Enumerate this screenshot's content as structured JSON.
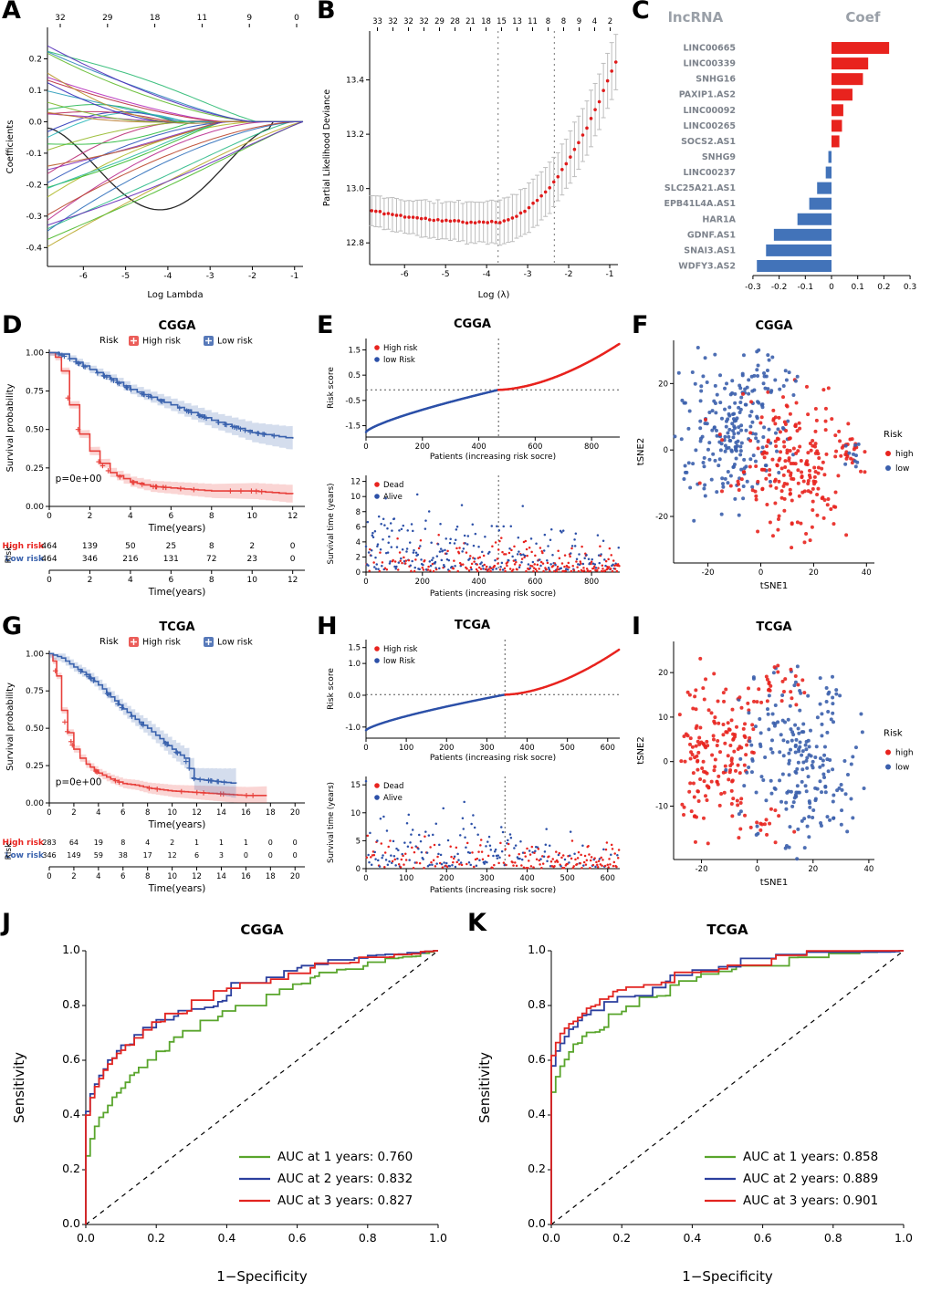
{
  "chart_data": [
    {
      "panel": "A",
      "type": "lasso_paths",
      "xlabel": "Log Lambda",
      "ylabel": "Coefficients",
      "top_ticks": [
        "32",
        "29",
        "18",
        "11",
        "9",
        "0"
      ],
      "x_tick_vals": [
        -6,
        -5,
        -4,
        -3,
        -2,
        -1
      ],
      "y_tick_vals": [
        -0.4,
        -0.3,
        -0.2,
        -0.1,
        0.0,
        0.1,
        0.2
      ],
      "y_tick_labels": [
        "-0.4",
        "-0.3",
        "-0.2",
        "-0.1",
        "0.0",
        "0.1",
        "0.2"
      ],
      "xlim": [
        -6.85,
        -0.8
      ],
      "ylim": [
        -0.46,
        0.3
      ],
      "n_lines": 33,
      "seed": 7
    },
    {
      "panel": "B",
      "type": "deviance",
      "xlabel": "Log (λ)",
      "ylabel": "Partial Likelihood Deviance",
      "top_ticks": [
        "33",
        "32",
        "32",
        "32",
        "29",
        "28",
        "21",
        "18",
        "15",
        "13",
        "11",
        "8",
        "8",
        "9",
        "4",
        "2"
      ],
      "x_tick_vals": [
        -6,
        -5,
        -4,
        -3,
        -2,
        -1
      ],
      "y_tick_vals": [
        12.8,
        13.0,
        13.2,
        13.4
      ],
      "y_tick_labels": [
        "12.8",
        "13.0",
        "13.2",
        "13.4"
      ],
      "xlim": [
        -6.85,
        -0.8
      ],
      "ylim": [
        12.72,
        13.58
      ],
      "vlines": [
        -3.72,
        -2.35
      ],
      "n_points": 60,
      "point_color": "#e01b1b",
      "seed": 11
    },
    {
      "panel": "C",
      "type": "hbar",
      "col_headers": [
        "lncRNA",
        "Coef"
      ],
      "categories": [
        "LINC00665",
        "LINC00339",
        "SNHG16",
        "PAXIP1.AS2",
        "LINC00092",
        "LINC00265",
        "SOCS2.AS1",
        "SNHG9",
        "LINC00237",
        "SLC25A21.AS1",
        "EPB41L4A.AS1",
        "HAR1A",
        "GDNF.AS1",
        "SNAI3.AS1",
        "WDFY3.AS2"
      ],
      "values": [
        0.22,
        0.14,
        0.12,
        0.08,
        0.045,
        0.04,
        0.03,
        -0.012,
        -0.022,
        -0.055,
        -0.085,
        -0.13,
        -0.22,
        -0.25,
        -0.285
      ],
      "x_tick_vals": [
        -0.3,
        -0.2,
        -0.1,
        0,
        0.1,
        0.2,
        0.3
      ],
      "x_tick_labels": [
        "-0.3",
        "-0.2",
        "-0.1",
        "0",
        "0.1",
        "0.2",
        "0.3"
      ],
      "xlim": [
        -0.345,
        0.345
      ],
      "pos_color": "#e8231e",
      "neg_color": "#4273b9",
      "label_color": "#7d838c",
      "header_color": "#9aa0a8"
    },
    {
      "panel": "D",
      "type": "km",
      "title": "CGGA",
      "legend_title": "Risk",
      "legend": [
        {
          "label": "High risk",
          "color": "#e8413c"
        },
        {
          "label": "Low risk",
          "color": "#3a62ad"
        }
      ],
      "xlabel": "Time(years)",
      "ylabel": "Survival probability",
      "pvalue": "p=0e+00",
      "p_xy": [
        0.3,
        0.16
      ],
      "x_tick_vals": [
        0,
        2,
        4,
        6,
        8,
        10,
        12
      ],
      "y_tick_vals": [
        0,
        0.25,
        0.5,
        0.75,
        1
      ],
      "y_tick_labels": [
        "0.00",
        "0.25",
        "0.50",
        "0.75",
        "1.00"
      ],
      "xmax": 12.6,
      "curves": [
        {
          "name": "High risk",
          "color": "#e8413c",
          "band": [
            0.02,
            0.04,
            1
          ],
          "censor_n": 22,
          "points": [
            [
              0,
              1
            ],
            [
              0.3,
              0.97
            ],
            [
              0.6,
              0.88
            ],
            [
              1,
              0.66
            ],
            [
              1.5,
              0.47
            ],
            [
              2,
              0.36
            ],
            [
              2.5,
              0.28
            ],
            [
              3,
              0.22
            ],
            [
              4,
              0.16
            ],
            [
              5,
              0.13
            ],
            [
              6,
              0.12
            ],
            [
              7,
              0.11
            ],
            [
              8,
              0.1
            ],
            [
              10,
              0.1
            ],
            [
              11,
              0.09
            ],
            [
              12,
              0.08
            ]
          ]
        },
        {
          "name": "Low risk",
          "color": "#3a62ad",
          "band": [
            0.02,
            0.06,
            1.5
          ],
          "censor_n": 55,
          "points": [
            [
              0,
              1
            ],
            [
              0.5,
              0.99
            ],
            [
              1,
              0.96
            ],
            [
              2,
              0.89
            ],
            [
              3,
              0.83
            ],
            [
              4,
              0.76
            ],
            [
              5,
              0.71
            ],
            [
              6,
              0.66
            ],
            [
              7,
              0.61
            ],
            [
              8,
              0.56
            ],
            [
              9,
              0.52
            ],
            [
              10,
              0.48
            ],
            [
              11,
              0.46
            ],
            [
              12,
              0.44
            ]
          ]
        }
      ],
      "risk_table": {
        "axis_label": "Risk",
        "rows": [
          {
            "label": "High risk",
            "color": "#e8231e",
            "counts": [
              "464",
              "139",
              "50",
              "25",
              "8",
              "2",
              "0"
            ]
          },
          {
            "label": "Low risk",
            "color": "#3a62ad",
            "counts": [
              "464",
              "346",
              "216",
              "131",
              "72",
              "23",
              "0"
            ]
          }
        ]
      },
      "seed": 21
    },
    {
      "panel": "E",
      "type": "risk_panels",
      "title": "CGGA",
      "n": 900,
      "cutoff_index": 470,
      "cutoff_value": -0.08,
      "score_min": -1.75,
      "score_max": 1.75,
      "high_color": "#e8231e",
      "low_color": "#2c50a8",
      "xlabel": "Patients (increasing risk socre)",
      "top": {
        "ylabel": "Risk score",
        "y_tick_vals": [
          -1.5,
          -0.5,
          0.5,
          1.5
        ],
        "y_tick_labels": [
          "-1.5",
          "-0.5",
          "0.5",
          "1.5"
        ],
        "ylim": [
          -1.95,
          1.95
        ],
        "x_tick_vals": [
          0,
          200,
          400,
          600,
          800
        ],
        "legend": [
          {
            "label": "High risk",
            "risk": "high"
          },
          {
            "label": "low Risk",
            "risk": "low"
          }
        ]
      },
      "bottom": {
        "ylabel": "Survival time (years)",
        "y_tick_vals": [
          0,
          2,
          4,
          6,
          8,
          10,
          12
        ],
        "y_tick_labels": [
          "0",
          "2",
          "4",
          "6",
          "8",
          "10",
          "12"
        ],
        "ylim": [
          0,
          12.8
        ],
        "x_tick_vals": [
          0,
          200,
          400,
          600,
          800
        ],
        "legend": [
          {
            "label": "Dead",
            "risk": "high"
          },
          {
            "label": "Alive",
            "risk": "low"
          }
        ]
      },
      "seed": 33
    },
    {
      "panel": "F",
      "type": "tsne",
      "title": "CGGA",
      "xlabel": "tSNE1",
      "ylabel": "tSNE2",
      "x_tick_vals": [
        -20,
        0,
        20,
        40
      ],
      "y_tick_vals": [
        -20,
        0,
        20
      ],
      "xlim": [
        -33,
        43
      ],
      "ylim": [
        -34,
        33
      ],
      "legend_title": "Risk",
      "legend": [
        {
          "label": "high",
          "risk": "high"
        },
        {
          "label": "low",
          "risk": "low"
        }
      ],
      "high_color": "#e8231e",
      "low_color": "#3b5fac",
      "clusters": [
        {
          "risk": "low",
          "cx": -12,
          "cy": 5,
          "sx": 10,
          "sy": 11,
          "n": 220
        },
        {
          "risk": "high",
          "cx": 12,
          "cy": -5,
          "sx": 11,
          "sy": 10,
          "n": 220
        },
        {
          "risk": "low",
          "cx": 2,
          "cy": 22,
          "sx": 6,
          "sy": 4,
          "n": 25
        },
        {
          "risk": "high",
          "cx": 34,
          "cy": 1,
          "sx": 2.5,
          "sy": 3,
          "n": 16
        },
        {
          "risk": "low",
          "cx": 35,
          "cy": -2,
          "sx": 2,
          "sy": 2.5,
          "n": 10
        }
      ],
      "seed": 55
    },
    {
      "panel": "G",
      "type": "km",
      "title": "TCGA",
      "legend_title": "Risk",
      "legend": [
        {
          "label": "High risk",
          "color": "#e8413c"
        },
        {
          "label": "Low risk",
          "color": "#3a62ad"
        }
      ],
      "xlabel": "Time(years)",
      "ylabel": "Survival probability",
      "pvalue": "p=0e+00",
      "p_xy": [
        0.5,
        0.12
      ],
      "x_tick_vals": [
        0,
        2,
        4,
        6,
        8,
        10,
        12,
        14,
        16,
        18,
        20
      ],
      "y_tick_vals": [
        0,
        0.25,
        0.5,
        0.75,
        1
      ],
      "y_tick_labels": [
        "0.00",
        "0.25",
        "0.50",
        "0.75",
        "1.00"
      ],
      "xmax": 20.8,
      "curves": [
        {
          "name": "High risk",
          "color": "#e8413c",
          "band": [
            0.02,
            0.05,
            1.2
          ],
          "censor_n": 18,
          "points": [
            [
              0,
              1
            ],
            [
              0.3,
              0.95
            ],
            [
              0.6,
              0.85
            ],
            [
              1,
              0.62
            ],
            [
              1.5,
              0.47
            ],
            [
              2,
              0.36
            ],
            [
              2.5,
              0.3
            ],
            [
              3,
              0.26
            ],
            [
              4,
              0.2
            ],
            [
              5,
              0.16
            ],
            [
              6,
              0.13
            ],
            [
              7,
              0.12
            ],
            [
              8,
              0.1
            ],
            [
              9,
              0.09
            ],
            [
              10,
              0.08
            ],
            [
              12,
              0.07
            ],
            [
              14,
              0.06
            ],
            [
              16,
              0.05
            ],
            [
              17.7,
              0.05
            ]
          ]
        },
        {
          "name": "Low risk",
          "color": "#3a62ad",
          "band": [
            0.03,
            0.13,
            2
          ],
          "censor_n": 30,
          "points": [
            [
              0,
              1
            ],
            [
              1,
              0.97
            ],
            [
              2,
              0.91
            ],
            [
              3,
              0.86
            ],
            [
              4,
              0.79
            ],
            [
              5,
              0.71
            ],
            [
              6,
              0.63
            ],
            [
              7,
              0.56
            ],
            [
              8,
              0.5
            ],
            [
              9,
              0.43
            ],
            [
              10,
              0.36
            ],
            [
              11,
              0.3
            ],
            [
              11.8,
              0.16
            ],
            [
              13,
              0.15
            ],
            [
              14,
              0.14
            ],
            [
              15.2,
              0.13
            ]
          ]
        }
      ],
      "risk_table": {
        "axis_label": "Risk",
        "rows": [
          {
            "label": "High risk",
            "color": "#e8231e",
            "counts": [
              "283",
              "64",
              "19",
              "8",
              "4",
              "2",
              "1",
              "1",
              "1",
              "0",
              "0"
            ]
          },
          {
            "label": "Low risk",
            "color": "#3a62ad",
            "counts": [
              "346",
              "149",
              "59",
              "38",
              "17",
              "12",
              "6",
              "3",
              "0",
              "0",
              "0"
            ]
          }
        ]
      },
      "seed": 23
    },
    {
      "panel": "H",
      "type": "risk_panels",
      "title": "TCGA",
      "n": 630,
      "cutoff_index": 345,
      "cutoff_value": 0.02,
      "score_min": -1.1,
      "score_max": 1.45,
      "high_color": "#e8231e",
      "low_color": "#2c50a8",
      "xlabel": "Patients (increasing risk socre)",
      "top": {
        "ylabel": "Risk score",
        "y_tick_vals": [
          -1,
          0,
          1,
          1.5
        ],
        "y_tick_labels": [
          "-1.0",
          "0.0",
          "1.0",
          "1.5"
        ],
        "ylim": [
          -1.35,
          1.75
        ],
        "x_tick_vals": [
          0,
          100,
          200,
          300,
          400,
          500,
          600
        ],
        "legend": [
          {
            "label": "High risk",
            "risk": "high"
          },
          {
            "label": "low Risk",
            "risk": "low"
          }
        ]
      },
      "bottom": {
        "ylabel": "Survival time (years)",
        "y_tick_vals": [
          0,
          5,
          10,
          15
        ],
        "y_tick_labels": [
          "0",
          "5",
          "10",
          "15"
        ],
        "ylim": [
          0,
          16.5
        ],
        "x_tick_vals": [
          0,
          100,
          200,
          300,
          400,
          500,
          600
        ],
        "legend": [
          {
            "label": "Dead",
            "risk": "high"
          },
          {
            "label": "Alive",
            "risk": "low"
          }
        ]
      },
      "seed": 37
    },
    {
      "panel": "I",
      "type": "tsne",
      "title": "TCGA",
      "xlabel": "tSNE1",
      "ylabel": "tSNE2",
      "x_tick_vals": [
        -20,
        0,
        20,
        40
      ],
      "y_tick_vals": [
        -10,
        0,
        10,
        20
      ],
      "xlim": [
        -30,
        42
      ],
      "ylim": [
        -22,
        27
      ],
      "legend_title": "Risk",
      "legend": [
        {
          "label": "high",
          "risk": "high"
        },
        {
          "label": "low",
          "risk": "low"
        }
      ],
      "high_color": "#e8231e",
      "low_color": "#3b5fac",
      "clusters": [
        {
          "risk": "high",
          "cx": -15,
          "cy": 1,
          "sx": 7,
          "sy": 8,
          "n": 170
        },
        {
          "risk": "low",
          "cx": 14,
          "cy": 0,
          "sx": 10,
          "sy": 9,
          "n": 210
        },
        {
          "risk": "high",
          "cx": 6,
          "cy": 17,
          "sx": 5,
          "sy": 3,
          "n": 30
        },
        {
          "risk": "high",
          "cx": 3,
          "cy": -14,
          "sx": 4,
          "sy": 2.5,
          "n": 14
        },
        {
          "risk": "low",
          "cx": 27,
          "cy": 15,
          "sx": 3,
          "sy": 3,
          "n": 12
        }
      ],
      "seed": 57
    },
    {
      "panel": "J",
      "type": "roc",
      "title": "CGGA",
      "xlabel": "1−Specificity",
      "ylabel": "Sensitivity",
      "tick_vals": [
        0,
        0.2,
        0.4,
        0.6,
        0.8,
        1
      ],
      "tick_labels": [
        "0.0",
        "0.2",
        "0.4",
        "0.6",
        "0.8",
        "1.0"
      ],
      "series": [
        {
          "label": "AUC at 1 years: 0.760",
          "auc": 0.76,
          "color": "#59a52c"
        },
        {
          "label": "AUC at 2 years: 0.832",
          "auc": 0.832,
          "color": "#2b3f9e"
        },
        {
          "label": "AUC at 3 years: 0.827",
          "auc": 0.827,
          "color": "#e22420"
        }
      ],
      "seed": 61
    },
    {
      "panel": "K",
      "type": "roc",
      "title": "TCGA",
      "xlabel": "1−Specificity",
      "ylabel": "Sensitivity",
      "tick_vals": [
        0,
        0.2,
        0.4,
        0.6,
        0.8,
        1
      ],
      "tick_labels": [
        "0.0",
        "0.2",
        "0.4",
        "0.6",
        "0.8",
        "1.0"
      ],
      "series": [
        {
          "label": "AUC at 1 years: 0.858",
          "auc": 0.858,
          "color": "#59a52c"
        },
        {
          "label": "AUC at 2 years: 0.889",
          "auc": 0.889,
          "color": "#2b3f9e"
        },
        {
          "label": "AUC at 3 years: 0.901",
          "auc": 0.901,
          "color": "#e22420"
        }
      ],
      "seed": 63
    }
  ]
}
